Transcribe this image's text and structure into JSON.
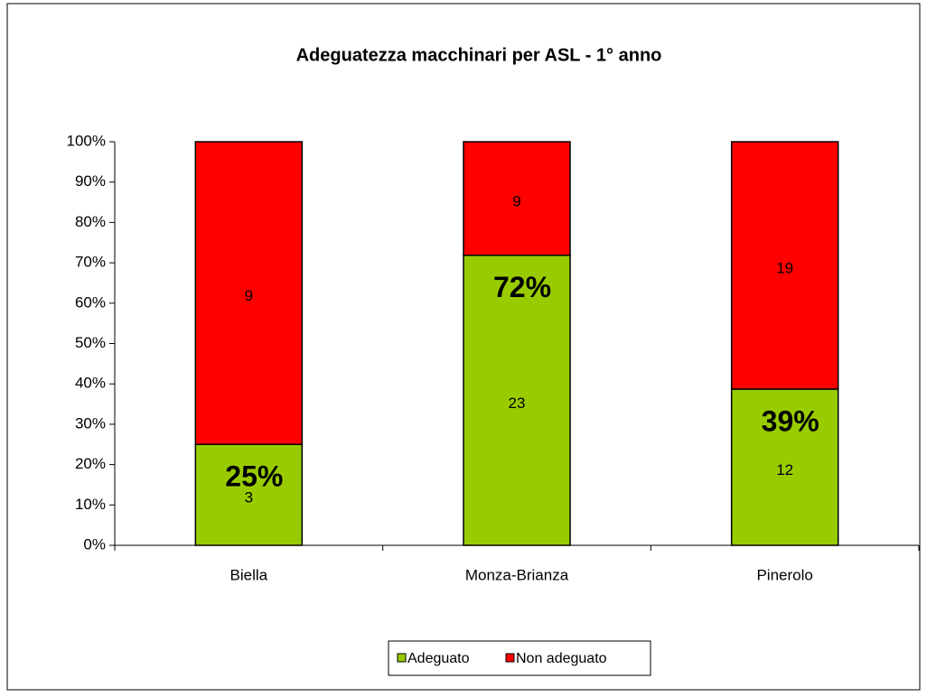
{
  "chart_data": {
    "type": "bar",
    "stacked": "percent",
    "title": "Adeguatezza macchinari per ASL - 1° anno",
    "categories": [
      "Biella",
      "Monza-Brianza",
      "Pinerolo"
    ],
    "series": [
      {
        "name": "Adeguato",
        "color": "#99cc00",
        "values": [
          3,
          23,
          12
        ]
      },
      {
        "name": "Non adeguato",
        "color": "#ff0000",
        "values": [
          9,
          9,
          19
        ]
      }
    ],
    "percent_labels": [
      "25%",
      "72%",
      "39%"
    ],
    "ylim": [
      0,
      100
    ],
    "yticks": [
      {
        "value": 0,
        "label": "0%"
      },
      {
        "value": 10,
        "label": "10%"
      },
      {
        "value": 20,
        "label": "20%"
      },
      {
        "value": 30,
        "label": "30%"
      },
      {
        "value": 40,
        "label": "40%"
      },
      {
        "value": 50,
        "label": "50%"
      },
      {
        "value": 60,
        "label": "60%"
      },
      {
        "value": 70,
        "label": "70%"
      },
      {
        "value": 80,
        "label": "80%"
      },
      {
        "value": 90,
        "label": "90%"
      },
      {
        "value": 100,
        "label": "100%"
      }
    ],
    "legend": "bottom"
  }
}
